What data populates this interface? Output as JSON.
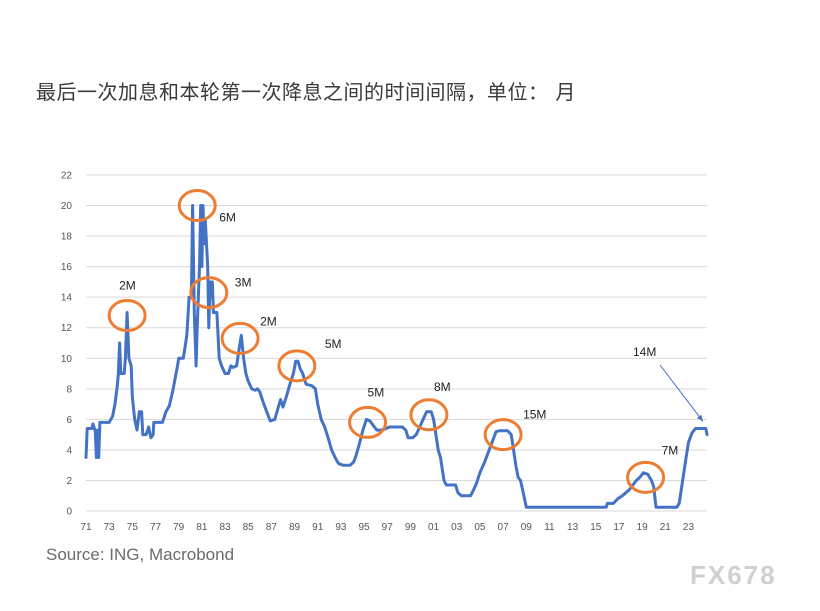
{
  "title": "最后一次加息和本轮第一次降息之间的时间间隔，单位： 月",
  "source": "Source: ING, Macrobond",
  "watermark": "FX678",
  "colors": {
    "line": "#4472C4",
    "circle": "#ED7D31",
    "grid": "#d9d9d9",
    "arrow": "#4472C4"
  },
  "chart_data": {
    "type": "line",
    "title": "最后一次加息和本轮第一次降息之间的时间间隔，单位： 月",
    "xlabel": "",
    "ylabel": "",
    "xlim": [
      1971,
      2024.6
    ],
    "ylim": [
      0,
      22
    ],
    "grid": true,
    "yticks": [
      0,
      2,
      4,
      6,
      8,
      10,
      12,
      14,
      16,
      18,
      20,
      22
    ],
    "xticks": [
      {
        "v": 1971,
        "label": "71"
      },
      {
        "v": 1973,
        "label": "73"
      },
      {
        "v": 1975,
        "label": "75"
      },
      {
        "v": 1977,
        "label": "77"
      },
      {
        "v": 1979,
        "label": "79"
      },
      {
        "v": 1981,
        "label": "81"
      },
      {
        "v": 1983,
        "label": "83"
      },
      {
        "v": 1985,
        "label": "85"
      },
      {
        "v": 1987,
        "label": "87"
      },
      {
        "v": 1989,
        "label": "89"
      },
      {
        "v": 1991,
        "label": "91"
      },
      {
        "v": 1993,
        "label": "93"
      },
      {
        "v": 1995,
        "label": "95"
      },
      {
        "v": 1997,
        "label": "97"
      },
      {
        "v": 1999,
        "label": "99"
      },
      {
        "v": 2001,
        "label": "01"
      },
      {
        "v": 2003,
        "label": "03"
      },
      {
        "v": 2005,
        "label": "05"
      },
      {
        "v": 2007,
        "label": "07"
      },
      {
        "v": 2009,
        "label": "09"
      },
      {
        "v": 2011,
        "label": "11"
      },
      {
        "v": 2013,
        "label": "13"
      },
      {
        "v": 2015,
        "label": "15"
      },
      {
        "v": 2017,
        "label": "17"
      },
      {
        "v": 2019,
        "label": "19"
      },
      {
        "v": 2021,
        "label": "21"
      },
      {
        "v": 2023,
        "label": "23"
      }
    ],
    "series": [
      {
        "values": [
          [
            1971.0,
            3.5
          ],
          [
            1971.1,
            5.4
          ],
          [
            1971.5,
            5.4
          ],
          [
            1971.6,
            5.7
          ],
          [
            1971.8,
            5.2
          ],
          [
            1971.9,
            3.5
          ],
          [
            1972.0,
            5.3
          ],
          [
            1972.1,
            3.5
          ],
          [
            1972.2,
            5.8
          ],
          [
            1972.5,
            5.8
          ],
          [
            1973.0,
            5.8
          ],
          [
            1973.3,
            6.2
          ],
          [
            1973.5,
            7.0
          ],
          [
            1973.7,
            8.2
          ],
          [
            1973.8,
            9.0
          ],
          [
            1973.9,
            11.0
          ],
          [
            1974.0,
            9.0
          ],
          [
            1974.3,
            9.0
          ],
          [
            1974.4,
            10.0
          ],
          [
            1974.55,
            13.0
          ],
          [
            1974.7,
            10.0
          ],
          [
            1974.9,
            9.5
          ],
          [
            1975.0,
            7.5
          ],
          [
            1975.2,
            6.0
          ],
          [
            1975.4,
            5.3
          ],
          [
            1975.6,
            6.5
          ],
          [
            1975.8,
            6.5
          ],
          [
            1975.9,
            5.0
          ],
          [
            1976.2,
            5.0
          ],
          [
            1976.4,
            5.5
          ],
          [
            1976.6,
            4.8
          ],
          [
            1976.8,
            5.0
          ],
          [
            1976.85,
            5.8
          ],
          [
            1977.3,
            5.8
          ],
          [
            1977.6,
            5.8
          ],
          [
            1977.9,
            6.5
          ],
          [
            1978.2,
            6.9
          ],
          [
            1978.5,
            7.9
          ],
          [
            1978.9,
            9.5
          ],
          [
            1979.0,
            10.0
          ],
          [
            1979.4,
            10.0
          ],
          [
            1979.5,
            10.5
          ],
          [
            1979.7,
            11.5
          ],
          [
            1979.9,
            14.0
          ],
          [
            1980.1,
            14.0
          ],
          [
            1980.2,
            20.0
          ],
          [
            1980.35,
            13.0
          ],
          [
            1980.5,
            9.5
          ],
          [
            1980.6,
            12.0
          ],
          [
            1980.8,
            16.0
          ],
          [
            1980.9,
            20.0
          ],
          [
            1981.0,
            16.0
          ],
          [
            1981.1,
            20.0
          ],
          [
            1981.2,
            17.5
          ],
          [
            1981.3,
            19.0
          ],
          [
            1981.5,
            16.0
          ],
          [
            1981.6,
            12.0
          ],
          [
            1981.7,
            15.0
          ],
          [
            1981.8,
            14.0
          ],
          [
            1981.9,
            15.0
          ],
          [
            1982.0,
            13.0
          ],
          [
            1982.3,
            13.0
          ],
          [
            1982.5,
            10.0
          ],
          [
            1982.7,
            9.5
          ],
          [
            1983.0,
            9.0
          ],
          [
            1983.3,
            9.0
          ],
          [
            1983.5,
            9.5
          ],
          [
            1983.7,
            9.4
          ],
          [
            1984.0,
            9.5
          ],
          [
            1984.2,
            10.5
          ],
          [
            1984.4,
            11.5
          ],
          [
            1984.6,
            10.0
          ],
          [
            1984.8,
            9.0
          ],
          [
            1985.0,
            8.5
          ],
          [
            1985.3,
            8.0
          ],
          [
            1985.6,
            7.9
          ],
          [
            1985.8,
            8.0
          ],
          [
            1986.0,
            7.8
          ],
          [
            1986.3,
            7.1
          ],
          [
            1986.6,
            6.5
          ],
          [
            1986.9,
            5.9
          ],
          [
            1987.3,
            6.0
          ],
          [
            1987.6,
            6.8
          ],
          [
            1987.8,
            7.3
          ],
          [
            1988.0,
            6.8
          ],
          [
            1988.3,
            7.5
          ],
          [
            1988.6,
            8.3
          ],
          [
            1988.9,
            9.0
          ],
          [
            1989.1,
            9.8
          ],
          [
            1989.3,
            9.8
          ],
          [
            1989.5,
            9.3
          ],
          [
            1989.7,
            9.0
          ],
          [
            1990.0,
            8.3
          ],
          [
            1990.5,
            8.2
          ],
          [
            1990.8,
            8.0
          ],
          [
            1991.0,
            7.0
          ],
          [
            1991.3,
            6.0
          ],
          [
            1991.6,
            5.5
          ],
          [
            1991.9,
            4.8
          ],
          [
            1992.2,
            4.0
          ],
          [
            1992.5,
            3.5
          ],
          [
            1992.8,
            3.1
          ],
          [
            1993.2,
            3.0
          ],
          [
            1993.8,
            3.0
          ],
          [
            1994.1,
            3.2
          ],
          [
            1994.3,
            3.6
          ],
          [
            1994.6,
            4.4
          ],
          [
            1994.9,
            5.3
          ],
          [
            1995.2,
            6.0
          ],
          [
            1995.5,
            5.9
          ],
          [
            1995.8,
            5.6
          ],
          [
            1996.1,
            5.3
          ],
          [
            1996.5,
            5.3
          ],
          [
            1996.9,
            5.4
          ],
          [
            1997.2,
            5.5
          ],
          [
            1997.6,
            5.5
          ],
          [
            1998.0,
            5.5
          ],
          [
            1998.3,
            5.5
          ],
          [
            1998.6,
            5.3
          ],
          [
            1998.8,
            4.8
          ],
          [
            1999.2,
            4.8
          ],
          [
            1999.5,
            5.0
          ],
          [
            1999.8,
            5.5
          ],
          [
            2000.1,
            6.0
          ],
          [
            2000.4,
            6.5
          ],
          [
            2000.8,
            6.5
          ],
          [
            2001.0,
            6.0
          ],
          [
            2001.2,
            5.0
          ],
          [
            2001.4,
            4.0
          ],
          [
            2001.6,
            3.5
          ],
          [
            2001.9,
            2.0
          ],
          [
            2002.1,
            1.7
          ],
          [
            2002.5,
            1.7
          ],
          [
            2002.9,
            1.7
          ],
          [
            2003.1,
            1.2
          ],
          [
            2003.4,
            1.0
          ],
          [
            2003.8,
            1.0
          ],
          [
            2004.2,
            1.0
          ],
          [
            2004.4,
            1.3
          ],
          [
            2004.7,
            1.8
          ],
          [
            2005.0,
            2.5
          ],
          [
            2005.4,
            3.2
          ],
          [
            2005.8,
            4.0
          ],
          [
            2006.1,
            4.6
          ],
          [
            2006.4,
            5.2
          ],
          [
            2006.7,
            5.25
          ],
          [
            2007.0,
            5.25
          ],
          [
            2007.4,
            5.25
          ],
          [
            2007.7,
            5.0
          ],
          [
            2007.8,
            4.5
          ],
          [
            2008.0,
            3.5
          ],
          [
            2008.1,
            3.0
          ],
          [
            2008.3,
            2.2
          ],
          [
            2008.5,
            2.0
          ],
          [
            2008.8,
            1.0
          ],
          [
            2009.0,
            0.25
          ],
          [
            2010.5,
            0.25
          ],
          [
            2012.0,
            0.25
          ],
          [
            2013.5,
            0.25
          ],
          [
            2015.0,
            0.25
          ],
          [
            2015.9,
            0.25
          ],
          [
            2016.0,
            0.5
          ],
          [
            2016.5,
            0.5
          ],
          [
            2016.9,
            0.8
          ],
          [
            2017.3,
            1.0
          ],
          [
            2017.6,
            1.2
          ],
          [
            2017.9,
            1.4
          ],
          [
            2018.2,
            1.7
          ],
          [
            2018.5,
            2.0
          ],
          [
            2018.8,
            2.2
          ],
          [
            2019.1,
            2.5
          ],
          [
            2019.5,
            2.4
          ],
          [
            2019.8,
            2.0
          ],
          [
            2020.0,
            1.6
          ],
          [
            2020.2,
            0.25
          ],
          [
            2021.5,
            0.25
          ],
          [
            2022.0,
            0.25
          ],
          [
            2022.2,
            0.5
          ],
          [
            2022.4,
            1.5
          ],
          [
            2022.6,
            2.5
          ],
          [
            2022.8,
            3.5
          ],
          [
            2023.0,
            4.5
          ],
          [
            2023.3,
            5.1
          ],
          [
            2023.6,
            5.4
          ],
          [
            2024.5,
            5.4
          ],
          [
            2024.6,
            5.0
          ]
        ]
      }
    ],
    "annotations": [
      {
        "label": "2M",
        "cx": 1974.55,
        "cy": 12.8
      },
      {
        "label": "6M",
        "cx": 1980.6,
        "cy": 20.0
      },
      {
        "label": "3M",
        "cx": 1981.6,
        "cy": 14.3
      },
      {
        "label": "2M",
        "cx": 1984.3,
        "cy": 11.3
      },
      {
        "label": "5M",
        "cx": 1989.2,
        "cy": 9.5
      },
      {
        "label": "5M",
        "cx": 1995.3,
        "cy": 5.8
      },
      {
        "label": "8M",
        "cx": 2000.6,
        "cy": 6.3
      },
      {
        "label": "15M",
        "cx": 2007.0,
        "cy": 5.0
      },
      {
        "label": "7M",
        "cx": 2019.3,
        "cy": 2.2
      },
      {
        "label": "14M",
        "cx": null,
        "cy": null
      }
    ]
  }
}
